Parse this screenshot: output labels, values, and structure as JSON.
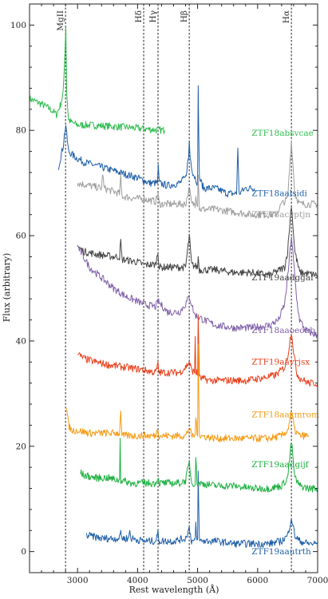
{
  "chart_data": {
    "type": "line",
    "xlabel": "Rest wavelength (Å)",
    "ylabel": "Flux (arbitrary)",
    "xlim": [
      2200,
      7000
    ],
    "ylim": [
      -4,
      104
    ],
    "x_ticks": [
      3000,
      4000,
      5000,
      6000,
      7000
    ],
    "y_ticks": [
      0,
      20,
      40,
      60,
      80,
      100
    ],
    "grid": false,
    "line_markers": [
      {
        "name": "MgII",
        "x": 2800
      },
      {
        "name": "Hδ",
        "x": 4102
      },
      {
        "name": "Hγ",
        "x": 4341
      },
      {
        "name": "Hβ",
        "x": 4861
      },
      {
        "name": "Hα",
        "x": 6563
      }
    ],
    "series": [
      {
        "name": "ZTF18absvcae",
        "color": "#2ebd4e",
        "label_at": [
          5900,
          79
        ],
        "x": [
          2200,
          2400,
          2550,
          2650,
          2720,
          2760,
          2790,
          2805,
          2820,
          2850,
          2900,
          3000,
          3200,
          3500,
          3800,
          4100,
          4300,
          4450
        ],
        "y": [
          86,
          85,
          84,
          83,
          85,
          87,
          95,
          100,
          87,
          82,
          81.5,
          81,
          81,
          80.8,
          80.6,
          80.3,
          80.1,
          80
        ]
      },
      {
        "name": "ZTF18aalsidi",
        "color": "#1f5fa8",
        "label_at": [
          5900,
          67.5
        ],
        "x": [
          2680,
          2720,
          2760,
          2790,
          2805,
          2820,
          2850,
          2950,
          3100,
          3400,
          3700,
          4000,
          4200,
          4330,
          4345,
          4360,
          4500,
          4700,
          4800,
          4850,
          4862,
          4875,
          4920,
          5000,
          5010,
          5030,
          5100,
          5300,
          5500,
          5650,
          5670,
          5690,
          5800,
          5950
        ],
        "y": [
          73,
          75,
          77,
          80,
          81,
          79,
          76,
          75,
          74,
          73,
          72,
          71,
          70,
          70,
          73,
          70,
          69.5,
          70,
          71,
          75,
          78,
          75,
          72,
          70,
          88,
          71,
          69,
          69,
          68,
          68,
          77,
          68,
          69,
          69
        ]
      },
      {
        "name": "ZTF18accptjn",
        "color": "#9e9e9e",
        "label_at": [
          5900,
          63.5
        ],
        "x": [
          3000,
          3200,
          3400,
          3420,
          3440,
          3700,
          3720,
          3740,
          4000,
          4100,
          4300,
          4340,
          4360,
          4600,
          4800,
          4862,
          4900,
          4960,
          4970,
          5000,
          5010,
          5030,
          5300,
          5600,
          5900,
          6100,
          6300,
          6400,
          6500,
          6563,
          6620,
          6700,
          7000
        ],
        "y": [
          70,
          69.5,
          69,
          72,
          69,
          68,
          71,
          67.5,
          67,
          67,
          66.5,
          68,
          66,
          66,
          66,
          69,
          66,
          66,
          68,
          65.5,
          72,
          65,
          65,
          64.5,
          64,
          64,
          64,
          66,
          67,
          78,
          68,
          66,
          66
        ]
      },
      {
        "name": "ZTF19aadggaf",
        "color": "#444444",
        "label_at": [
          5900,
          51.5
        ],
        "x": [
          3000,
          3100,
          3300,
          3600,
          3700,
          3720,
          3740,
          4000,
          4100,
          4300,
          4340,
          4360,
          4600,
          4800,
          4862,
          4900,
          5000,
          5010,
          5030,
          5300,
          5600,
          5900,
          6200,
          6450,
          6500,
          6563,
          6620,
          6700,
          7000
        ],
        "y": [
          58,
          57,
          56.5,
          56,
          56,
          59,
          55.5,
          55,
          54.5,
          54.5,
          57,
          54,
          54,
          54,
          60,
          54.5,
          54,
          56,
          53.5,
          53.5,
          53,
          53,
          52.5,
          54,
          57,
          66,
          57,
          53,
          52.5
        ]
      },
      {
        "name": "ZTF18aaoeobb",
        "color": "#8060a8",
        "label_at": [
          5900,
          41.5
        ],
        "x": [
          3000,
          3050,
          3100,
          3200,
          3400,
          3600,
          3800,
          4000,
          4100,
          4300,
          4340,
          4500,
          4700,
          4800,
          4862,
          4950,
          5100,
          5300,
          5600,
          5900,
          6200,
          6350,
          6450,
          6500,
          6563,
          6600,
          6650,
          6700,
          6800,
          7000
        ],
        "y": [
          58,
          57,
          56,
          54,
          52,
          50,
          48.5,
          47.5,
          47,
          46.5,
          47.5,
          45.5,
          45.5,
          47,
          48.5,
          45,
          44,
          43,
          42.5,
          42.5,
          43,
          44,
          47,
          52,
          60,
          55,
          48,
          44,
          42,
          41
        ]
      },
      {
        "name": "ZTF19aayrjsx",
        "color": "#e8401c",
        "label_at": [
          5900,
          35.5
        ],
        "x": [
          3000,
          3050,
          3150,
          3300,
          3500,
          3800,
          4100,
          4300,
          4340,
          4360,
          4500,
          4700,
          4800,
          4862,
          4900,
          4950,
          4960,
          4970,
          4990,
          5000,
          5010,
          5030,
          5200,
          5500,
          5800,
          6100,
          6300,
          6450,
          6500,
          6563,
          6600,
          6650,
          6700,
          6850,
          7000
        ],
        "y": [
          38,
          37,
          36.5,
          36,
          35.5,
          35,
          34.5,
          34,
          35.5,
          34,
          34,
          34,
          35,
          36,
          34.5,
          34,
          41,
          34,
          34,
          33.5,
          45,
          33,
          32.5,
          32.5,
          32.5,
          33,
          33.5,
          35,
          37,
          42,
          38,
          34,
          33,
          32,
          32
        ]
      },
      {
        "name": "ZTF18aaxmrom",
        "color": "#f59a12",
        "label_at": [
          5900,
          25.5
        ],
        "x": [
          2820,
          2850,
          2900,
          3000,
          3200,
          3400,
          3600,
          3700,
          3720,
          3740,
          3900,
          4100,
          4300,
          4340,
          4360,
          4600,
          4800,
          4862,
          4900,
          4960,
          4970,
          4990,
          5000,
          5010,
          5030,
          5300,
          5600,
          5900,
          6200,
          6400,
          6500,
          6563,
          6620,
          6700,
          6850
        ],
        "y": [
          27,
          24,
          23,
          23,
          22.5,
          22.5,
          22.5,
          22.5,
          27,
          22,
          22,
          22,
          22,
          23.5,
          22,
          22,
          22,
          23.5,
          22,
          22,
          26,
          22,
          22,
          40,
          22,
          21.5,
          21.5,
          21.5,
          21.5,
          22,
          23,
          26.5,
          23,
          22,
          22
        ]
      },
      {
        "name": "ZTF19aadgijf",
        "color": "#1cb040",
        "label_at": [
          5900,
          16
        ]
      },
      {
        "name": "ZTF19aautrth",
        "color": "#1f5fa8",
        "label_at": [
          5900,
          -0.5
        ],
        "x": [
          3150,
          3200,
          3400,
          3600,
          3700,
          3720,
          3740,
          3850,
          3870,
          3890,
          4100,
          4300,
          4340,
          4360,
          4600,
          4800,
          4862,
          4900,
          4960,
          4970,
          4990,
          5000,
          5010,
          5030,
          5300,
          5600,
          5900,
          6200,
          6400,
          6500,
          6563,
          6620,
          6700,
          6850,
          7000
        ],
        "y": [
          3,
          3,
          2.5,
          2.5,
          2.5,
          4,
          2.5,
          2.5,
          4,
          2.5,
          2,
          2,
          3.5,
          2,
          2,
          2.5,
          4.5,
          2,
          2,
          5,
          2,
          2,
          15,
          2,
          2,
          1.5,
          1.5,
          1.5,
          2,
          3,
          6.5,
          3,
          2,
          1.5,
          1.5
        ]
      }
    ],
    "extra_series": [
      {
        "name": "ZTF19aadgijf",
        "color": "#1cb040",
        "x": [
          3050,
          3100,
          3300,
          3500,
          3700,
          3710,
          3720,
          3740,
          3900,
          4100,
          4300,
          4340,
          4360,
          4500,
          4700,
          4800,
          4862,
          4900,
          4960,
          4970,
          4990,
          5000,
          5010,
          5030,
          5300,
          5600,
          5900,
          6200,
          6400,
          6500,
          6563,
          6620,
          6700,
          6850,
          7000
        ],
        "y": [
          15,
          14.5,
          14,
          14,
          13.5,
          22,
          13.5,
          13.5,
          13,
          13,
          13,
          14,
          13,
          13,
          13,
          13.5,
          17,
          13,
          13,
          18,
          13,
          13,
          13,
          13,
          12.5,
          12.5,
          12,
          12,
          12.5,
          14,
          21,
          14,
          12.5,
          12,
          12
        ]
      }
    ]
  }
}
